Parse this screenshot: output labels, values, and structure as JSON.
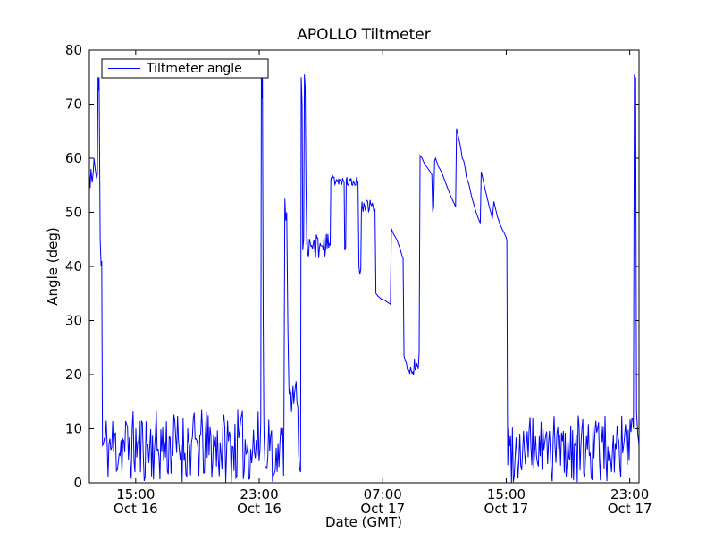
{
  "chart_data": {
    "type": "line",
    "title": "APOLLO Tiltmeter",
    "xlabel": "Date (GMT)",
    "ylabel": "Angle (deg)",
    "legend_label": "Tiltmeter angle",
    "line_color": "#0000ff",
    "x_unit": "hours since Oct 16 00:00 GMT",
    "xlim": [
      12.0,
      47.6
    ],
    "ylim": [
      0,
      80
    ],
    "yticks": [
      0,
      10,
      20,
      30,
      40,
      50,
      60,
      70,
      80
    ],
    "xticks": [
      {
        "h": 15,
        "time": "15:00",
        "date": "Oct 16"
      },
      {
        "h": 23,
        "time": "23:00",
        "date": "Oct 16"
      },
      {
        "h": 31,
        "time": "07:00",
        "date": "Oct 17"
      },
      {
        "h": 39,
        "time": "15:00",
        "date": "Oct 17"
      },
      {
        "h": 47,
        "time": "23:00",
        "date": "Oct 17"
      }
    ],
    "series_name": "Tiltmeter angle",
    "segments": [
      {
        "type": "points",
        "pts": [
          [
            12.0,
            57
          ],
          [
            12.05,
            54.5
          ],
          [
            12.1,
            58
          ],
          [
            12.18,
            55.5
          ],
          [
            12.25,
            57.5
          ],
          [
            12.3,
            60
          ],
          [
            12.38,
            58
          ],
          [
            12.45,
            56.5
          ],
          [
            12.52,
            57
          ],
          [
            12.56,
            75
          ],
          [
            12.6,
            72.5
          ],
          [
            12.63,
            75
          ],
          [
            12.7,
            45
          ],
          [
            12.76,
            40
          ],
          [
            12.8,
            41
          ],
          [
            12.84,
            13
          ]
        ]
      },
      {
        "type": "noise",
        "x0": 12.85,
        "x1": 23.08,
        "lo": 0,
        "hi": 13.5,
        "step": 0.06,
        "seed": 11
      },
      {
        "type": "points",
        "pts": [
          [
            23.1,
            11
          ],
          [
            23.14,
            75
          ],
          [
            23.18,
            71
          ],
          [
            23.21,
            75
          ],
          [
            23.26,
            30
          ],
          [
            23.3,
            12
          ]
        ]
      },
      {
        "type": "noise",
        "x0": 23.32,
        "x1": 24.58,
        "lo": 0,
        "hi": 13,
        "step": 0.06,
        "seed": 22
      },
      {
        "type": "points",
        "pts": [
          [
            24.6,
            11
          ],
          [
            24.66,
            52.5
          ],
          [
            24.72,
            48.5
          ],
          [
            24.78,
            50
          ],
          [
            24.86,
            28
          ],
          [
            24.92,
            18
          ]
        ]
      },
      {
        "type": "noise",
        "x0": 24.94,
        "x1": 25.46,
        "lo": 13,
        "hi": 19,
        "step": 0.05,
        "seed": 33
      },
      {
        "type": "points",
        "pts": [
          [
            25.5,
            14
          ],
          [
            25.56,
            5
          ],
          [
            25.62,
            2.5
          ],
          [
            25.68,
            2
          ],
          [
            25.72,
            75
          ],
          [
            25.78,
            70
          ],
          [
            25.82,
            43
          ],
          [
            25.88,
            45
          ],
          [
            25.93,
            75.5
          ],
          [
            25.98,
            73
          ],
          [
            26.03,
            55
          ],
          [
            26.08,
            44
          ]
        ]
      },
      {
        "type": "noise",
        "x0": 26.1,
        "x1": 27.58,
        "lo": 41.5,
        "hi": 46,
        "step": 0.05,
        "seed": 44
      },
      {
        "type": "points",
        "pts": [
          [
            27.6,
            44
          ],
          [
            27.64,
            56
          ],
          [
            27.68,
            56.5
          ]
        ]
      },
      {
        "type": "noise",
        "x0": 27.7,
        "x1": 28.46,
        "lo": 55,
        "hi": 57,
        "step": 0.05,
        "seed": 55
      },
      {
        "type": "points",
        "pts": [
          [
            28.5,
            55.5
          ],
          [
            28.54,
            43
          ],
          [
            28.6,
            43.5
          ],
          [
            28.64,
            56
          ],
          [
            28.68,
            56.5
          ]
        ]
      },
      {
        "type": "noise",
        "x0": 28.7,
        "x1": 29.36,
        "lo": 55,
        "hi": 56.5,
        "step": 0.05,
        "seed": 66
      },
      {
        "type": "points",
        "pts": [
          [
            29.4,
            55.5
          ],
          [
            29.46,
            40
          ],
          [
            29.52,
            38.5
          ],
          [
            29.58,
            39.5
          ],
          [
            29.62,
            50
          ],
          [
            29.66,
            52
          ]
        ]
      },
      {
        "type": "noise",
        "x0": 29.68,
        "x1": 30.46,
        "lo": 50,
        "hi": 52.5,
        "step": 0.05,
        "seed": 77
      },
      {
        "type": "points",
        "pts": [
          [
            30.5,
            50.5
          ],
          [
            30.56,
            35
          ],
          [
            30.7,
            34.5
          ],
          [
            30.9,
            34
          ],
          [
            31.1,
            33.8
          ],
          [
            31.3,
            33.4
          ],
          [
            31.5,
            33
          ],
          [
            31.56,
            47
          ],
          [
            31.7,
            46
          ],
          [
            31.9,
            45
          ],
          [
            32.1,
            43.5
          ],
          [
            32.25,
            42
          ],
          [
            32.32,
            41.5
          ],
          [
            32.38,
            23.5
          ],
          [
            32.46,
            22.5
          ]
        ]
      },
      {
        "type": "noise",
        "x0": 32.5,
        "x1": 33.26,
        "lo": 19.5,
        "hi": 23,
        "step": 0.05,
        "seed": 88
      },
      {
        "type": "points",
        "pts": [
          [
            33.3,
            21
          ],
          [
            33.36,
            24
          ],
          [
            33.42,
            60.5
          ],
          [
            33.55,
            60
          ],
          [
            33.7,
            59
          ],
          [
            33.9,
            58.2
          ],
          [
            34.05,
            57.6
          ],
          [
            34.18,
            57
          ],
          [
            34.24,
            50
          ],
          [
            34.3,
            51
          ],
          [
            34.36,
            59.5
          ],
          [
            34.42,
            60
          ],
          [
            34.6,
            58.5
          ],
          [
            34.8,
            57.5
          ],
          [
            35.0,
            56
          ],
          [
            35.2,
            54.5
          ],
          [
            35.4,
            53
          ],
          [
            35.6,
            51.8
          ],
          [
            35.72,
            51
          ],
          [
            35.78,
            65.5
          ],
          [
            35.9,
            64
          ],
          [
            36.05,
            62
          ],
          [
            36.15,
            60
          ],
          [
            36.25,
            59.5
          ],
          [
            36.35,
            58
          ],
          [
            36.42,
            56.5
          ],
          [
            36.6,
            55
          ],
          [
            36.75,
            53
          ],
          [
            36.9,
            51.5
          ],
          [
            37.05,
            50
          ],
          [
            37.2,
            48.8
          ],
          [
            37.32,
            48
          ],
          [
            37.38,
            57.5
          ],
          [
            37.5,
            56
          ],
          [
            37.65,
            54
          ],
          [
            37.78,
            52.5
          ],
          [
            37.9,
            51
          ],
          [
            38.0,
            50
          ],
          [
            38.1,
            48.8
          ],
          [
            38.2,
            52
          ],
          [
            38.32,
            50.5
          ],
          [
            38.45,
            49
          ],
          [
            38.6,
            47.8
          ],
          [
            38.75,
            46.8
          ],
          [
            38.9,
            46
          ],
          [
            39.0,
            45.3
          ],
          [
            39.04,
            44.8
          ],
          [
            39.08,
            13
          ]
        ]
      },
      {
        "type": "noise",
        "x0": 39.1,
        "x1": 47.2,
        "lo": 0,
        "hi": 12.5,
        "step": 0.06,
        "seed": 99
      },
      {
        "type": "points",
        "pts": [
          [
            47.24,
            10
          ],
          [
            47.3,
            75.5
          ],
          [
            47.34,
            69
          ],
          [
            47.38,
            75
          ],
          [
            47.44,
            13
          ],
          [
            47.52,
            9
          ],
          [
            47.6,
            7
          ]
        ]
      }
    ]
  }
}
